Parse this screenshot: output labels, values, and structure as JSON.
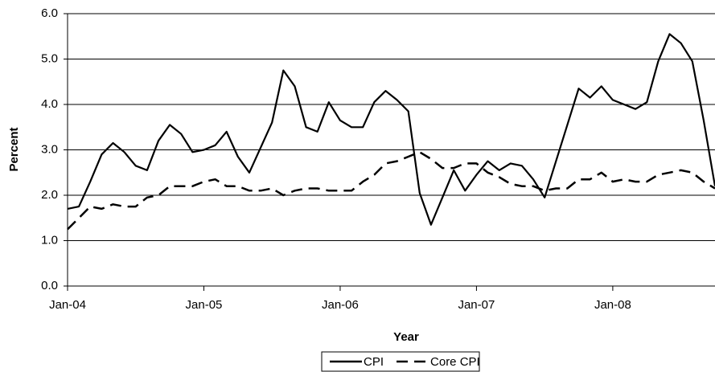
{
  "chart_data": {
    "type": "line",
    "categories": [
      "Jan-04",
      null,
      null,
      null,
      null,
      null,
      null,
      null,
      null,
      null,
      null,
      null,
      "Jan-05",
      null,
      null,
      null,
      null,
      null,
      null,
      null,
      null,
      null,
      null,
      null,
      "Jan-06",
      null,
      null,
      null,
      null,
      null,
      null,
      null,
      null,
      null,
      null,
      null,
      "Jan-07",
      null,
      null,
      null,
      null,
      null,
      null,
      null,
      null,
      null,
      null,
      null,
      "Jan-08",
      null,
      null,
      null,
      null,
      null,
      null,
      null,
      null,
      null
    ],
    "series": [
      {
        "name": "CPI",
        "color": "#000000",
        "dash": "solid",
        "values": [
          1.7,
          1.75,
          2.3,
          2.9,
          3.15,
          2.95,
          2.65,
          2.55,
          3.2,
          3.55,
          3.35,
          2.95,
          3.0,
          3.1,
          3.4,
          2.85,
          2.5,
          3.05,
          3.6,
          4.75,
          4.4,
          3.5,
          3.4,
          4.05,
          3.65,
          3.5,
          3.5,
          4.05,
          4.3,
          4.1,
          3.85,
          2.05,
          1.35,
          1.95,
          2.55,
          2.1,
          2.45,
          2.75,
          2.55,
          2.7,
          2.65,
          2.35,
          1.95,
          2.75,
          3.55,
          4.35,
          4.15,
          4.4,
          4.1,
          4.0,
          3.9,
          4.05,
          4.95,
          5.55,
          5.35,
          4.95,
          3.65,
          2.2
        ]
      },
      {
        "name": "Core CPI",
        "color": "#000000",
        "dash": "dashed",
        "values": [
          1.25,
          1.5,
          1.75,
          1.7,
          1.8,
          1.75,
          1.75,
          1.95,
          2.0,
          2.2,
          2.2,
          2.2,
          2.3,
          2.35,
          2.2,
          2.2,
          2.1,
          2.1,
          2.15,
          2.0,
          2.1,
          2.15,
          2.15,
          2.1,
          2.1,
          2.1,
          2.3,
          2.45,
          2.7,
          2.75,
          2.85,
          2.95,
          2.8,
          2.6,
          2.6,
          2.7,
          2.7,
          2.5,
          2.4,
          2.25,
          2.2,
          2.2,
          2.1,
          2.15,
          2.15,
          2.35,
          2.35,
          2.5,
          2.3,
          2.35,
          2.3,
          2.3,
          2.45,
          2.5,
          2.55,
          2.5,
          2.3,
          2.15
        ]
      }
    ],
    "x_label": "Year",
    "y_label": "Percent",
    "ylim": [
      0,
      6
    ],
    "yticks": [
      {
        "value": 0,
        "label": "0.0"
      },
      {
        "value": 1,
        "label": "1.0"
      },
      {
        "value": 2,
        "label": "2.0"
      },
      {
        "value": 3,
        "label": "3.0"
      },
      {
        "value": 4,
        "label": "4.0"
      },
      {
        "value": 5,
        "label": "5.0"
      },
      {
        "value": 6,
        "label": "6.0"
      }
    ],
    "grid": true,
    "legend": "bottom"
  }
}
